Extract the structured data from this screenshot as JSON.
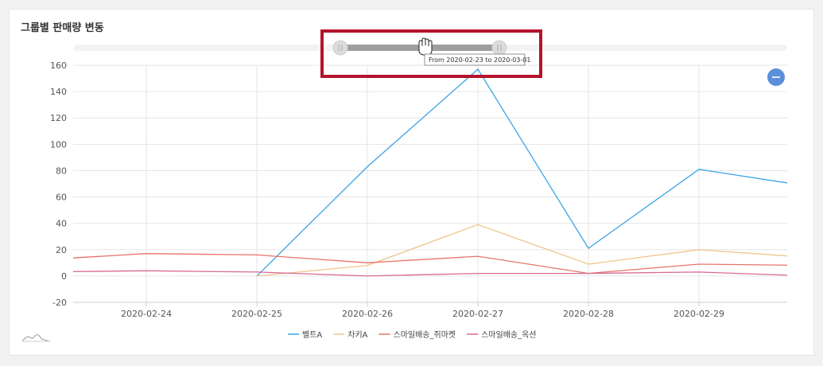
{
  "title": "그룹별 판매량 변동",
  "range_tooltip": "From 2020-02-23 to 2020-03-01",
  "colors": {
    "highlight": "#b5122c",
    "slider_track": "#9e9e9e",
    "zoom_button": "#5b8fd9"
  },
  "icons": {
    "zoom": "minus-icon",
    "cursor": "hand-cursor-icon",
    "navigator": "mini-chart-icon"
  },
  "chart_data": {
    "type": "line",
    "categories": [
      "2020-02-23",
      "2020-02-24",
      "2020-02-25",
      "2020-02-26",
      "2020-02-27",
      "2020-02-28",
      "2020-02-29",
      "2020-03-01"
    ],
    "x_tick_labels": [
      "2020-02-24",
      "2020-02-25",
      "2020-02-26",
      "2020-02-27",
      "2020-02-28",
      "2020-02-29"
    ],
    "ylim": [
      -20,
      160
    ],
    "y_ticks": [
      -20,
      0,
      20,
      40,
      60,
      80,
      100,
      120,
      140,
      160
    ],
    "grid": true,
    "legend_position": "bottom",
    "series": [
      {
        "name": "벨트A",
        "color": "#3ba3e6",
        "values": [
          null,
          null,
          0,
          83,
          157,
          21,
          81,
          68
        ]
      },
      {
        "name": "차키A",
        "color": "#f0c58c",
        "values": [
          null,
          null,
          0,
          8,
          39,
          9,
          20,
          14
        ]
      },
      {
        "name": "스마일배송_쥐마켓",
        "color": "#e8736a",
        "values": [
          12,
          17,
          16,
          10,
          15,
          2,
          9,
          8
        ]
      },
      {
        "name": "스마일배송_옥션",
        "color": "#d86a96",
        "values": [
          3,
          4,
          3,
          0,
          2,
          2,
          3,
          0
        ]
      }
    ]
  }
}
